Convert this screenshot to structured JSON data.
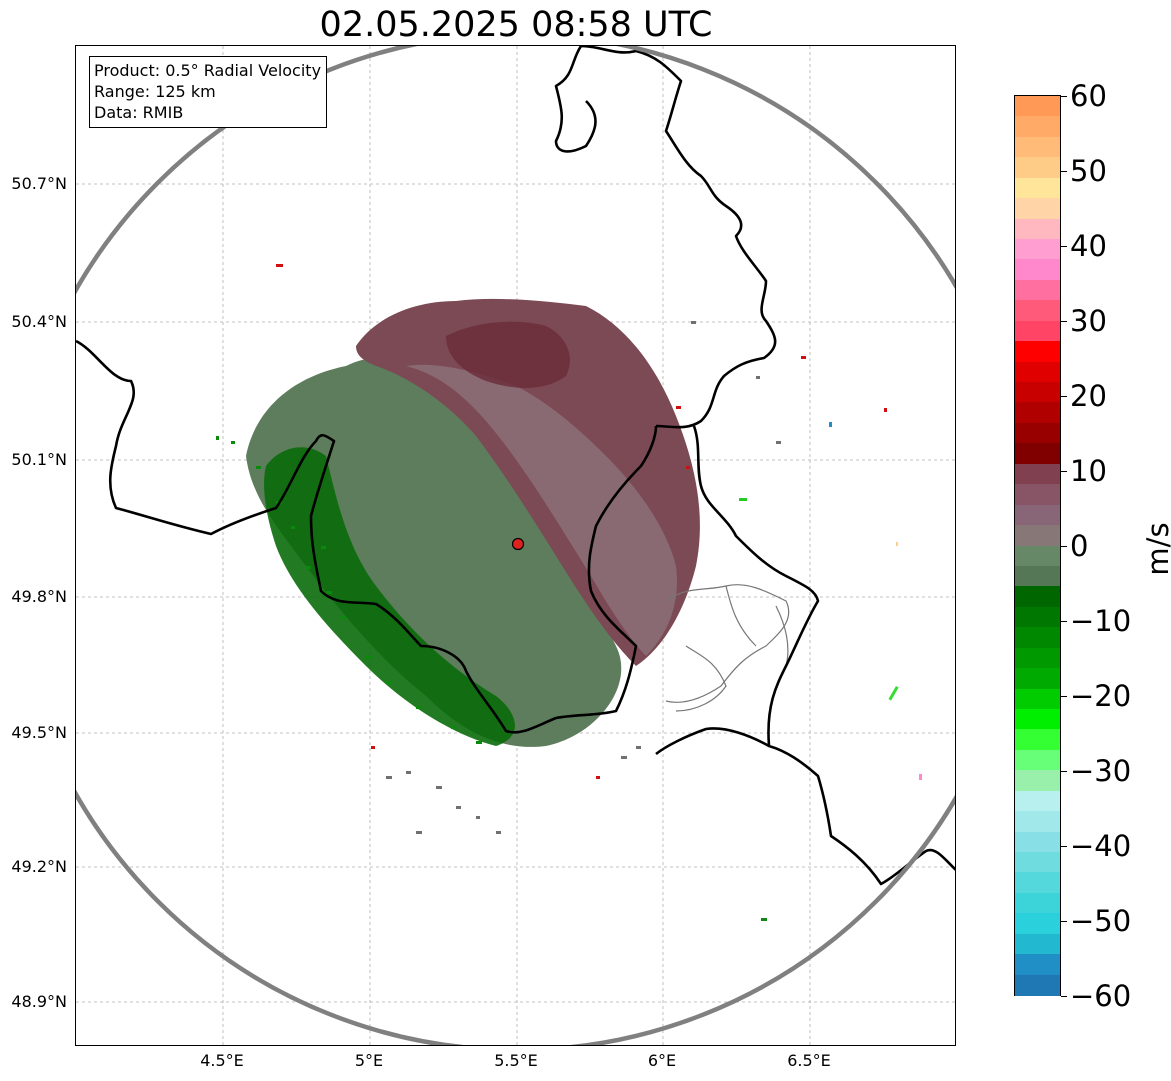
{
  "title": "02.05.2025 08:58 UTC",
  "info_box": {
    "line1": "Product: 0.5° Radial Velocity",
    "line2": "Range: 125 km",
    "line3": "Data: RMIB"
  },
  "map": {
    "lat_labels": [
      "50.7°N",
      "50.4°N",
      "50.1°N",
      "49.8°N",
      "49.5°N",
      "49.2°N",
      "48.9°N"
    ],
    "lon_labels": [
      "4.5°E",
      "5°E",
      "5.5°E",
      "6°E",
      "6.5°E"
    ],
    "radar_site": "red-dot-marker",
    "range_ring_color": "#808080",
    "border_color": "#000000"
  },
  "colorbar": {
    "unit": "m/s",
    "tick_labels": [
      "60",
      "50",
      "40",
      "30",
      "20",
      "10",
      "0",
      "−10",
      "−20",
      "−30",
      "−40",
      "−50",
      "−60"
    ],
    "colors_top_to_bottom": [
      "#ff9955",
      "#ffaa66",
      "#ffbb77",
      "#ffcc88",
      "#ffe599",
      "#ffd5a8",
      "#ffb8c0",
      "#ff9ed0",
      "#ff88cc",
      "#ff6fa0",
      "#ff5a7a",
      "#ff4466",
      "#ff0000",
      "#e00000",
      "#c80000",
      "#b00000",
      "#980000",
      "#800000",
      "#804050",
      "#885566",
      "#886677",
      "#887777",
      "#668866",
      "#557755",
      "#006600",
      "#007700",
      "#008800",
      "#009900",
      "#00aa00",
      "#00cc00",
      "#00ee00",
      "#33ff33",
      "#66ff77",
      "#99f0aa",
      "#b8f0f0",
      "#a0e8ea",
      "#88e0e6",
      "#6fdce0",
      "#55d8dc",
      "#3cd4d8",
      "#2ad0dc",
      "#22b8d0",
      "#1f8fc6",
      "#1f77b4"
    ]
  }
}
